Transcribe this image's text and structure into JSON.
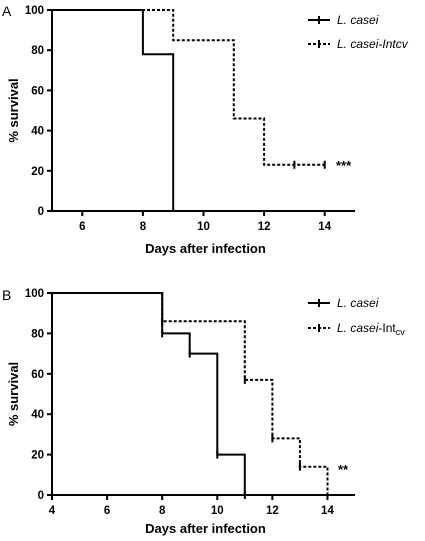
{
  "chart_data": [
    {
      "panel": "A",
      "type": "line",
      "subtype": "kaplan-meier-step",
      "xlabel": "Days after infection",
      "ylabel": "% survival",
      "xlim": [
        5,
        15
      ],
      "ylim": [
        0,
        100
      ],
      "xticks": [
        6,
        8,
        10,
        12,
        14
      ],
      "yticks": [
        0,
        20,
        40,
        60,
        80,
        100
      ],
      "grid": false,
      "legend_position": "top-right",
      "annotation": "***",
      "series": [
        {
          "name": "L. casei",
          "name_suffix": "",
          "line_style": "solid",
          "points": [
            [
              5,
              100
            ],
            [
              8,
              100
            ],
            [
              8,
              78
            ],
            [
              9,
              78
            ],
            [
              9,
              0
            ]
          ],
          "censored": []
        },
        {
          "name": "L. casei-Intcv",
          "name_suffix": "",
          "line_style": "dotted",
          "points": [
            [
              5,
              100
            ],
            [
              9,
              100
            ],
            [
              9,
              85
            ],
            [
              11,
              85
            ],
            [
              11,
              46
            ],
            [
              12,
              46
            ],
            [
              12,
              23
            ],
            [
              14,
              23
            ]
          ],
          "censored": [
            [
              13,
              23
            ],
            [
              14,
              23
            ]
          ]
        }
      ]
    },
    {
      "panel": "B",
      "type": "line",
      "subtype": "kaplan-meier-step",
      "xlabel": "Days after infection",
      "ylabel": "% survival",
      "xlim": [
        4,
        15
      ],
      "ylim": [
        0,
        100
      ],
      "xticks": [
        4,
        6,
        8,
        10,
        12,
        14
      ],
      "yticks": [
        0,
        20,
        40,
        60,
        80,
        100
      ],
      "grid": false,
      "legend_position": "top-right",
      "annotation": "**",
      "series": [
        {
          "name": "L. casei",
          "name_suffix": "",
          "line_style": "solid",
          "points": [
            [
              4,
              100
            ],
            [
              8,
              100
            ],
            [
              8,
              80
            ],
            [
              9,
              80
            ],
            [
              9,
              70
            ],
            [
              10,
              70
            ],
            [
              10,
              20
            ],
            [
              11,
              20
            ],
            [
              11,
              0
            ]
          ],
          "censored": [
            [
              8,
              80
            ],
            [
              9,
              70
            ],
            [
              10,
              20
            ],
            [
              11,
              0
            ]
          ]
        },
        {
          "name": "L. casei-Int",
          "name_suffix": "cv",
          "line_style": "dotted",
          "points": [
            [
              4,
              100
            ],
            [
              8,
              100
            ],
            [
              8,
              86
            ],
            [
              11,
              86
            ],
            [
              11,
              57
            ],
            [
              12,
              57
            ],
            [
              12,
              28
            ],
            [
              13,
              28
            ],
            [
              13,
              14
            ],
            [
              14,
              14
            ],
            [
              14,
              0
            ]
          ],
          "censored": [
            [
              8,
              86
            ],
            [
              11,
              57
            ],
            [
              12,
              28
            ],
            [
              13,
              14
            ]
          ]
        }
      ]
    }
  ]
}
